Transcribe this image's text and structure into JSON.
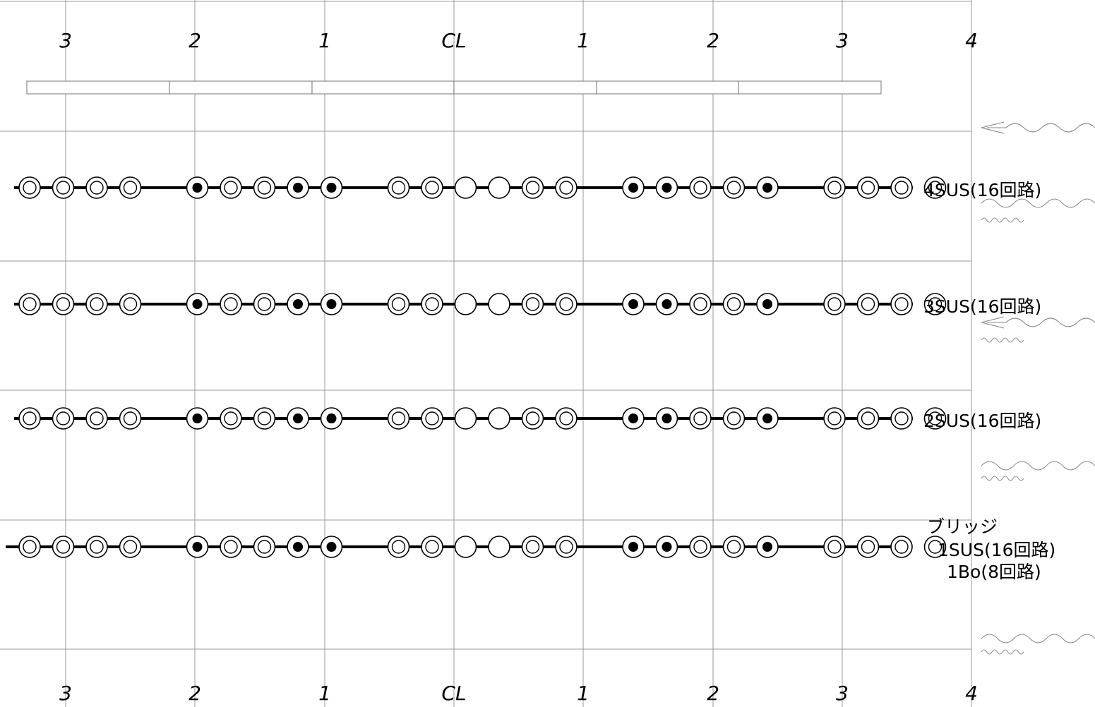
{
  "axis": {
    "top_labels": [
      "3",
      "2",
      "1",
      "CL",
      "1",
      "2",
      "3",
      "4"
    ],
    "bottom_labels": [
      "3",
      "2",
      "1",
      "CL",
      "1",
      "2",
      "3",
      "4"
    ]
  },
  "rows": [
    {
      "label_lines": [
        "4SUS(16回路)"
      ],
      "pattern": [
        "ring",
        "ring",
        "ring",
        "ring",
        "gap",
        "dot",
        "ring",
        "ring",
        "dot",
        "dot",
        "gap",
        "ring",
        "ring",
        "empty",
        "empty",
        "ring",
        "ring",
        "gap",
        "dot",
        "dot",
        "ring",
        "ring",
        "dot",
        "gap",
        "ring",
        "ring",
        "ring",
        "ring"
      ]
    },
    {
      "label_lines": [
        "3SUS(16回路)"
      ],
      "pattern": [
        "ring",
        "ring",
        "ring",
        "ring",
        "gap",
        "dot",
        "ring",
        "ring",
        "dot",
        "dot",
        "gap",
        "ring",
        "ring",
        "empty",
        "empty",
        "ring",
        "ring",
        "gap",
        "dot",
        "dot",
        "ring",
        "ring",
        "dot",
        "gap",
        "ring",
        "ring",
        "ring",
        "ring"
      ]
    },
    {
      "label_lines": [
        "2SUS(16回路)"
      ],
      "pattern": [
        "ring",
        "ring",
        "ring",
        "ring",
        "gap",
        "dot",
        "ring",
        "ring",
        "dot",
        "dot",
        "gap",
        "ring",
        "ring",
        "empty",
        "empty",
        "ring",
        "ring",
        "gap",
        "dot",
        "dot",
        "ring",
        "ring",
        "dot",
        "gap",
        "ring",
        "ring",
        "ring",
        "ring"
      ]
    },
    {
      "label_lines": [
        "ブリッジ",
        "1SUS(16回路)",
        "1Bo(8回路)"
      ],
      "pattern": [
        "ring",
        "ring",
        "ring",
        "ring",
        "gap",
        "dot",
        "ring",
        "ring",
        "dot",
        "dot",
        "gap",
        "ring",
        "ring",
        "empty",
        "empty",
        "ring",
        "ring",
        "gap",
        "dot",
        "dot",
        "ring",
        "ring",
        "dot",
        "gap",
        "ring",
        "ring",
        "ring",
        "ring"
      ]
    }
  ],
  "colors": {
    "ink": "#000000",
    "grid": "#9a9a9a",
    "box": "#8a8a8a",
    "squiggle": "#8a8a8a"
  }
}
